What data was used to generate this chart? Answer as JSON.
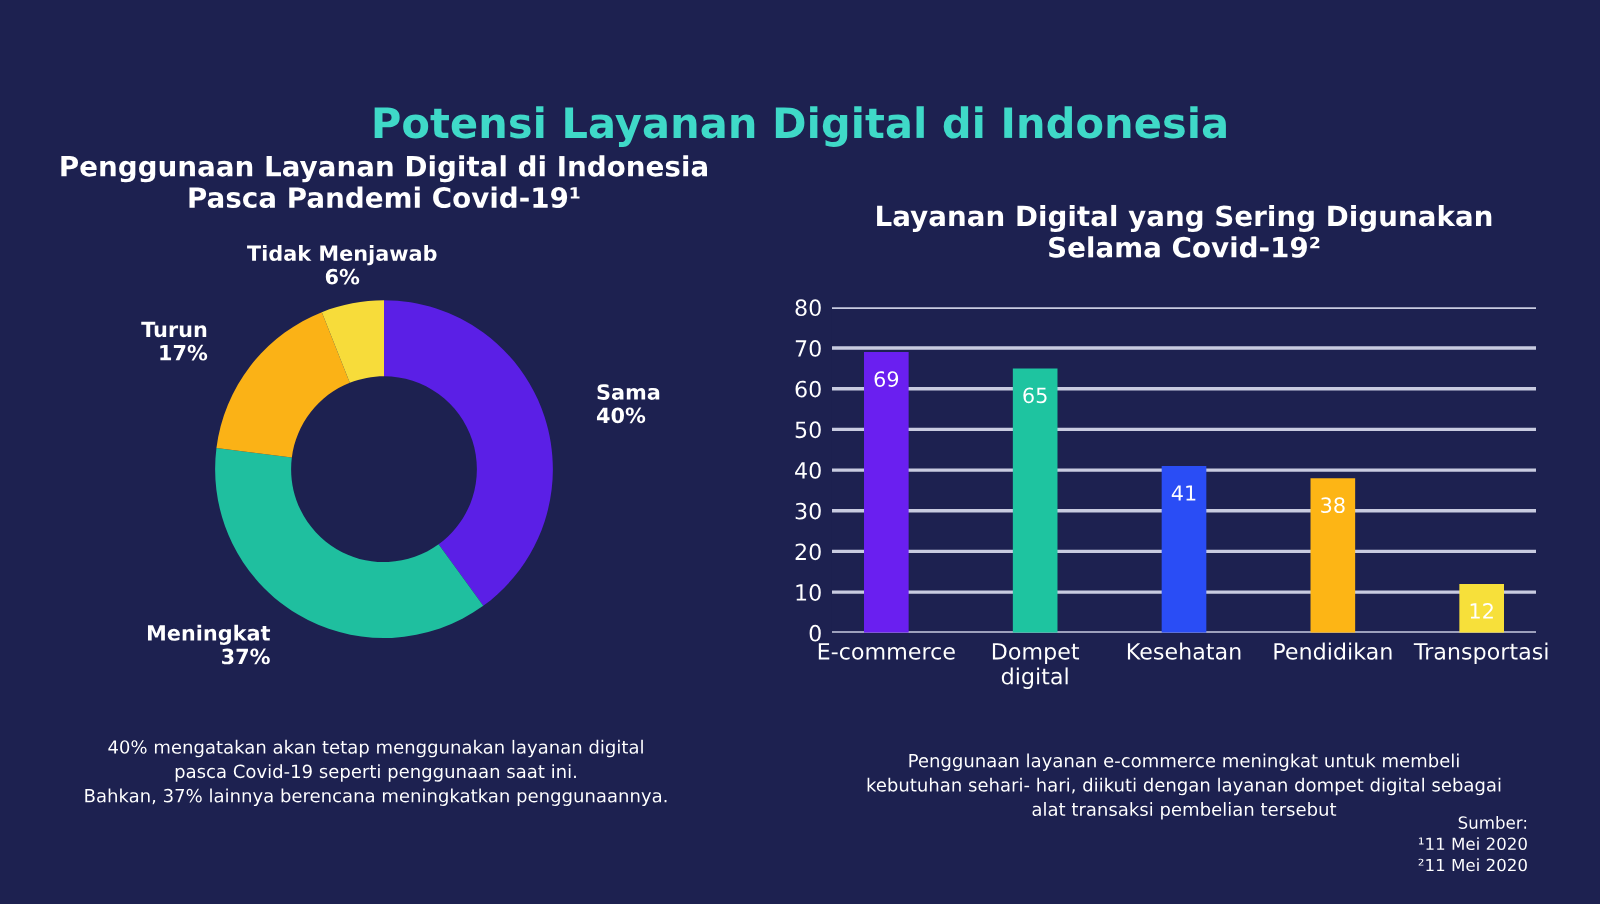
{
  "chart_data": [
    {
      "type": "donut",
      "title": "Penggunaan Layanan Digital di Indonesia\nPasca Pandemi Covid-19¹",
      "categories": [
        "Sama",
        "Meningkat",
        "Turun",
        "Tidak Menjawab"
      ],
      "values": [
        40,
        37,
        17,
        6
      ],
      "colors": [
        "#5b1fe6",
        "#1fbf9f",
        "#fbb216",
        "#f7dc3a"
      ],
      "value_labels": [
        "40%",
        "37%",
        "17%",
        "6%"
      ],
      "annotations": [
        "Potensi Layanan Digital di Indonesia",
        "40% mengatakan akan tetap menggunakan layanan digital\npasca Covid-19 seperti penggunaan saat ini.\nBahkan, 37% lainnya berencana meningkatkan penggunaannya."
      ]
    },
    {
      "type": "bar",
      "title": "Layanan Digital yang Sering Digunakan\nSelama Covid-19²",
      "categories": [
        "E-commerce",
        "Dompet\ndigital",
        "Kesehatan",
        "Pendidikan",
        "Transportasi"
      ],
      "values": [
        69,
        65,
        41,
        38,
        12
      ],
      "colors": [
        "#6a1ff0",
        "#1ec4a0",
        "#2a4df5",
        "#fdb515",
        "#f7e03a"
      ],
      "ylim": [
        0,
        80
      ],
      "yticks": [
        0,
        10,
        20,
        30,
        40,
        50,
        60,
        70,
        80
      ],
      "grid": "y",
      "data_labels": true,
      "annotations": [
        "Penggunaan layanan e-commerce meningkat untuk membeli\nkebutuhan sehari- hari, diikuti dengan layanan dompet digital sebagai\nalat transaksi pembelian tersebut",
        "Sumber:\n¹11 Mei 2020\n²11 Mei 2020"
      ]
    }
  ]
}
